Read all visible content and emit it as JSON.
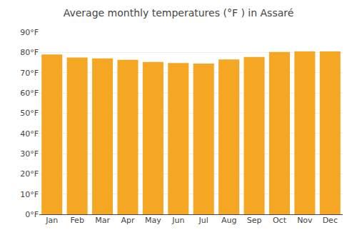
{
  "chart_data": {
    "type": "bar",
    "title": "Average monthly temperatures (°F ) in Assaré",
    "categories": [
      "Jan",
      "Feb",
      "Mar",
      "Apr",
      "May",
      "Jun",
      "Jul",
      "Aug",
      "Sep",
      "Oct",
      "Nov",
      "Dec"
    ],
    "values": [
      79.0,
      77.5,
      77.0,
      76.3,
      75.3,
      74.7,
      74.5,
      76.5,
      77.7,
      80.2,
      80.5,
      80.5
    ],
    "color": "#F5A623",
    "ylim": [
      0,
      90
    ],
    "yticks": [
      {
        "value": 0,
        "label": "0°F"
      },
      {
        "value": 10,
        "label": "10°F"
      },
      {
        "value": 20,
        "label": "20°F"
      },
      {
        "value": 30,
        "label": "30°F"
      },
      {
        "value": 40,
        "label": "40°F"
      },
      {
        "value": 50,
        "label": "50°F"
      },
      {
        "value": 60,
        "label": "60°F"
      },
      {
        "value": 70,
        "label": "70°F"
      },
      {
        "value": 80,
        "label": "80°F"
      },
      {
        "value": 90,
        "label": "90°F"
      }
    ],
    "grid": true
  }
}
